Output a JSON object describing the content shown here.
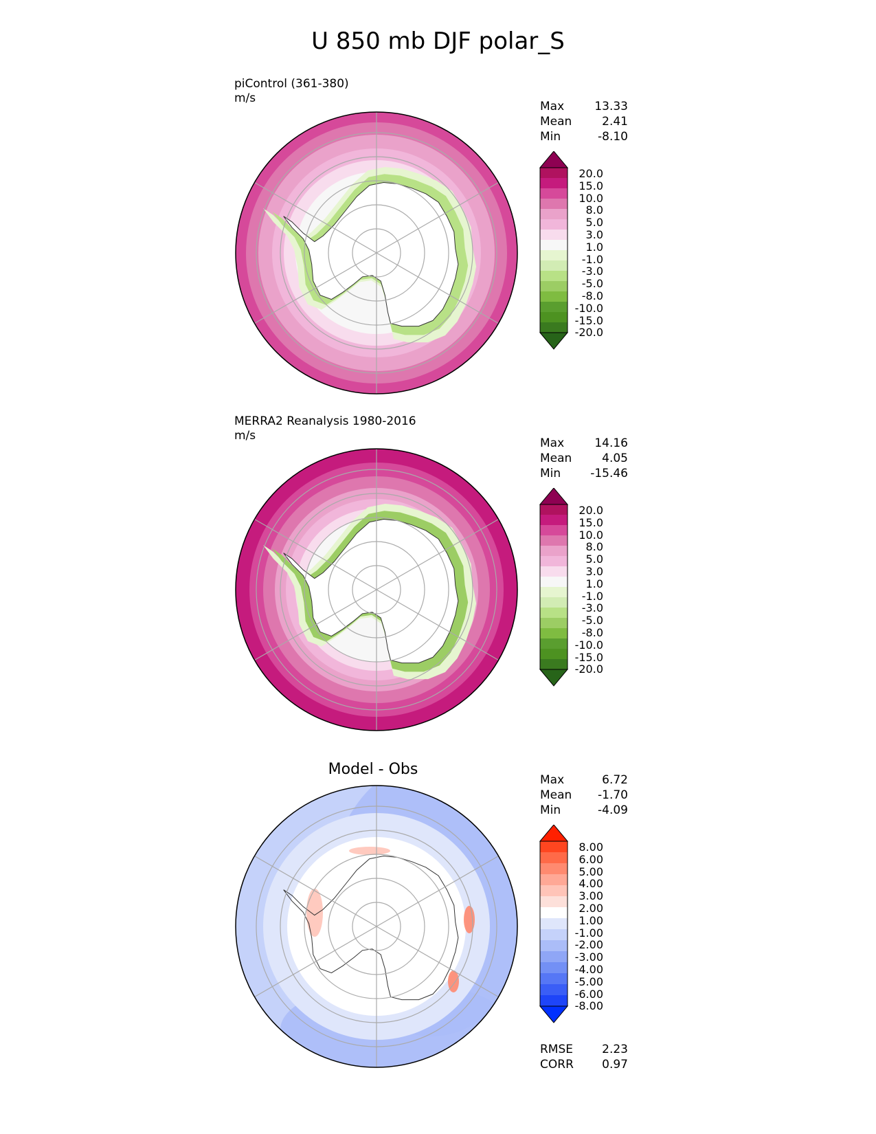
{
  "title": "U 850 mb DJF polar_S",
  "panels": [
    {
      "id": "model",
      "title_line1": "piControl (361-380)",
      "title_line2": "m/s",
      "stats": {
        "max_label": "Max",
        "max": "13.33",
        "mean_label": "Mean",
        "mean": "2.41",
        "min_label": "Min",
        "min": "-8.10"
      },
      "colorbar": {
        "levels": [
          "20.0",
          "15.0",
          "10.0",
          "8.0",
          "5.0",
          "3.0",
          "1.0",
          "-1.0",
          "-3.0",
          "-5.0",
          "-8.0",
          "-10.0",
          "-15.0",
          "-20.0"
        ],
        "colors": [
          "#8e0152",
          "#b0125f",
          "#c51b7d",
          "#d6499a",
          "#de77ae",
          "#eaa2ca",
          "#f1b6da",
          "#f8dced",
          "#f7f7f7",
          "#e6f5d0",
          "#d2ecb4",
          "#b8e186",
          "#9ccd64",
          "#7fbc41",
          "#5a9e2f",
          "#4d9221",
          "#3a7a1f",
          "#276419"
        ]
      },
      "map_type": "ms_model"
    },
    {
      "id": "obs",
      "title_line1": "MERRA2 Reanalysis 1980-2016",
      "title_line2": "m/s",
      "stats": {
        "max_label": "Max",
        "max": "14.16",
        "mean_label": "Mean",
        "mean": "4.05",
        "min_label": "Min",
        "min": "-15.46"
      },
      "colorbar": {
        "levels": [
          "20.0",
          "15.0",
          "10.0",
          "8.0",
          "5.0",
          "3.0",
          "1.0",
          "-1.0",
          "-3.0",
          "-5.0",
          "-8.0",
          "-10.0",
          "-15.0",
          "-20.0"
        ],
        "colors": [
          "#8e0152",
          "#b0125f",
          "#c51b7d",
          "#d6499a",
          "#de77ae",
          "#eaa2ca",
          "#f1b6da",
          "#f8dced",
          "#f7f7f7",
          "#e6f5d0",
          "#d2ecb4",
          "#b8e186",
          "#9ccd64",
          "#7fbc41",
          "#5a9e2f",
          "#4d9221",
          "#3a7a1f",
          "#276419"
        ]
      },
      "map_type": "ms_obs"
    },
    {
      "id": "diff",
      "title_line1": "Model - Obs",
      "stats": {
        "max_label": "Max",
        "max": "6.72",
        "mean_label": "Mean",
        "mean": "-1.70",
        "min_label": "Min",
        "min": "-4.09"
      },
      "colorbar": {
        "levels": [
          "8.00",
          "6.00",
          "5.00",
          "4.00",
          "3.00",
          "2.00",
          "1.00",
          "-1.00",
          "-2.00",
          "-3.00",
          "-4.00",
          "-5.00",
          "-6.00",
          "-8.00"
        ],
        "colors": [
          "#ff2000",
          "#ff4620",
          "#ff6a48",
          "#ff8a70",
          "#ffa896",
          "#ffc4b8",
          "#fde0da",
          "#ffffff",
          "#dfe6fb",
          "#c5d2fa",
          "#abbdf8",
          "#8fa6f6",
          "#7390f5",
          "#5677f5",
          "#3a5ef6",
          "#1e45f8",
          "#0030ff"
        ]
      },
      "bottom_stats": {
        "rmse_label": "RMSE",
        "rmse": "2.23",
        "corr_label": "CORR",
        "corr": "0.97"
      },
      "map_type": "diff"
    }
  ]
}
